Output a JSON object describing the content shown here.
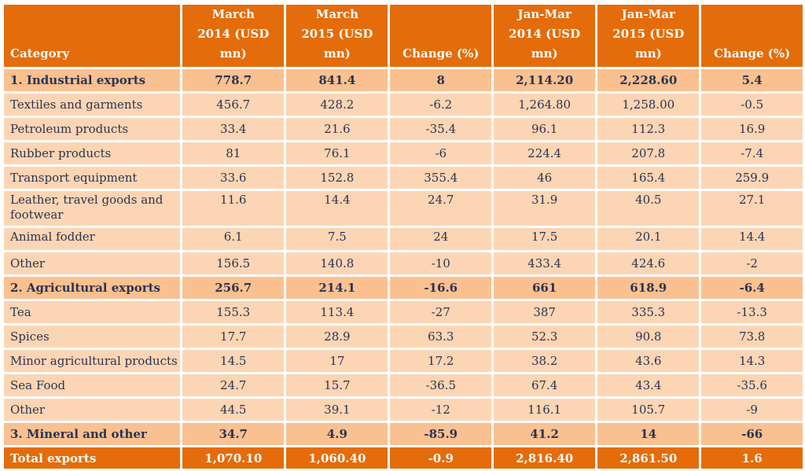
{
  "headers": {
    "category": "Category",
    "col1": [
      "March",
      "2014 (USD mn)"
    ],
    "col2": [
      "March",
      "2015 (USD mn)"
    ],
    "col3": [
      "",
      "Change (%)"
    ],
    "col4": [
      "Jan-Mar",
      "2014 (USD mn)"
    ],
    "col5": [
      "Jan-Mar",
      "2015 (USD mn)"
    ],
    "col6": [
      "",
      "Change (%)"
    ]
  },
  "rows": [
    {
      "label": "1. Industrial exports",
      "values": [
        "778.7",
        "841.4",
        "8",
        "2,114.20",
        "2,228.60",
        "5.4"
      ]
    },
    {
      "label": "Textiles and garments",
      "values": [
        "456.7",
        "428.2",
        "-6.2",
        "1,264.80",
        "1,258.00",
        "-0.5"
      ]
    },
    {
      "label": "Petroleum products",
      "values": [
        "33.4",
        "21.6",
        "-35.4",
        "96.1",
        "112.3",
        "16.9"
      ]
    },
    {
      "label": "Rubber products",
      "values": [
        "81",
        "76.1",
        "-6",
        "224.4",
        "207.8",
        "-7.4"
      ]
    },
    {
      "label": "Transport equipment",
      "values": [
        "33.6",
        "152.8",
        "355.4",
        "46",
        "165.4",
        "259.9"
      ]
    },
    {
      "label": "Leather, travel goods and footwear",
      "values": [
        "11.6",
        "14.4",
        "24.7",
        "31.9",
        "40.5",
        "27.1"
      ]
    },
    {
      "label": "Animal fodder",
      "values": [
        "6.1",
        "7.5",
        "24",
        "17.5",
        "20.1",
        "14.4"
      ]
    },
    {
      "label": "Other",
      "values": [
        "156.5",
        "140.8",
        "-10",
        "433.4",
        "424.6",
        "-2"
      ]
    },
    {
      "label": "2. Agricultural exports",
      "values": [
        "256.7",
        "214.1",
        "-16.6",
        "661",
        "618.9",
        "-6.4"
      ]
    },
    {
      "label": "Tea",
      "values": [
        "155.3",
        "113.4",
        "-27",
        "387",
        "335.3",
        "-13.3"
      ]
    },
    {
      "label": "Spices",
      "values": [
        "17.7",
        "28.9",
        "63.3",
        "52.3",
        "90.8",
        "73.8"
      ]
    },
    {
      "label": "Minor agricultural products",
      "values": [
        "14.5",
        "17",
        "17.2",
        "38.2",
        "43.6",
        "14.3"
      ]
    },
    {
      "label": "Sea Food",
      "values": [
        "24.7",
        "15.7",
        "-36.5",
        "67.4",
        "43.4",
        "-35.6"
      ]
    },
    {
      "label": "Other",
      "values": [
        "44.5",
        "39.1",
        "-12",
        "116.1",
        "105.7",
        "-9"
      ]
    },
    {
      "label": "3. Mineral and other",
      "values": [
        "34.7",
        "4.9",
        "-85.9",
        "41.2",
        "14",
        "-66"
      ]
    },
    {
      "label": "Total exports",
      "values": [
        "1,070.10",
        "1,060.40",
        "-0.9",
        "2,816.40",
        "2,861.50",
        "1.6"
      ]
    }
  ],
  "colors": {
    "header": "#e46c0a",
    "section": "#fac090",
    "row": "#fcd5b4",
    "text": "#2c3350"
  }
}
